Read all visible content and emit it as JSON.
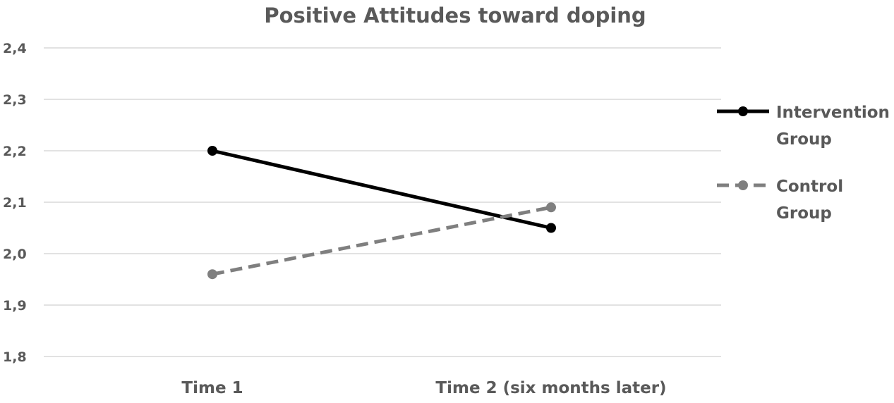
{
  "chart_data": {
    "type": "line",
    "title": "Positive Attitudes toward doping",
    "xlabel": "",
    "ylabel": "",
    "categories": [
      "Time 1",
      "Time 2 (six months later)"
    ],
    "ylim": [
      1.8,
      2.4
    ],
    "yticks": [
      {
        "value": 1.8,
        "label": "1,8"
      },
      {
        "value": 1.9,
        "label": "1,9"
      },
      {
        "value": 2.0,
        "label": "2,0"
      },
      {
        "value": 2.1,
        "label": "2,1"
      },
      {
        "value": 2.2,
        "label": "2,2"
      },
      {
        "value": 2.3,
        "label": "2,3"
      },
      {
        "value": 2.4,
        "label": "2,4"
      }
    ],
    "grid": true,
    "legend_position": "right",
    "series": [
      {
        "name": "Intervention Group",
        "legend_lines": [
          "Intervention",
          "Group"
        ],
        "values": [
          2.2,
          2.05
        ],
        "color": "#000000",
        "style": "solid"
      },
      {
        "name": "Control Group",
        "legend_lines": [
          "Control",
          "Group"
        ],
        "values": [
          1.96,
          2.09
        ],
        "color": "#7f7f7f",
        "style": "dashed"
      }
    ]
  }
}
